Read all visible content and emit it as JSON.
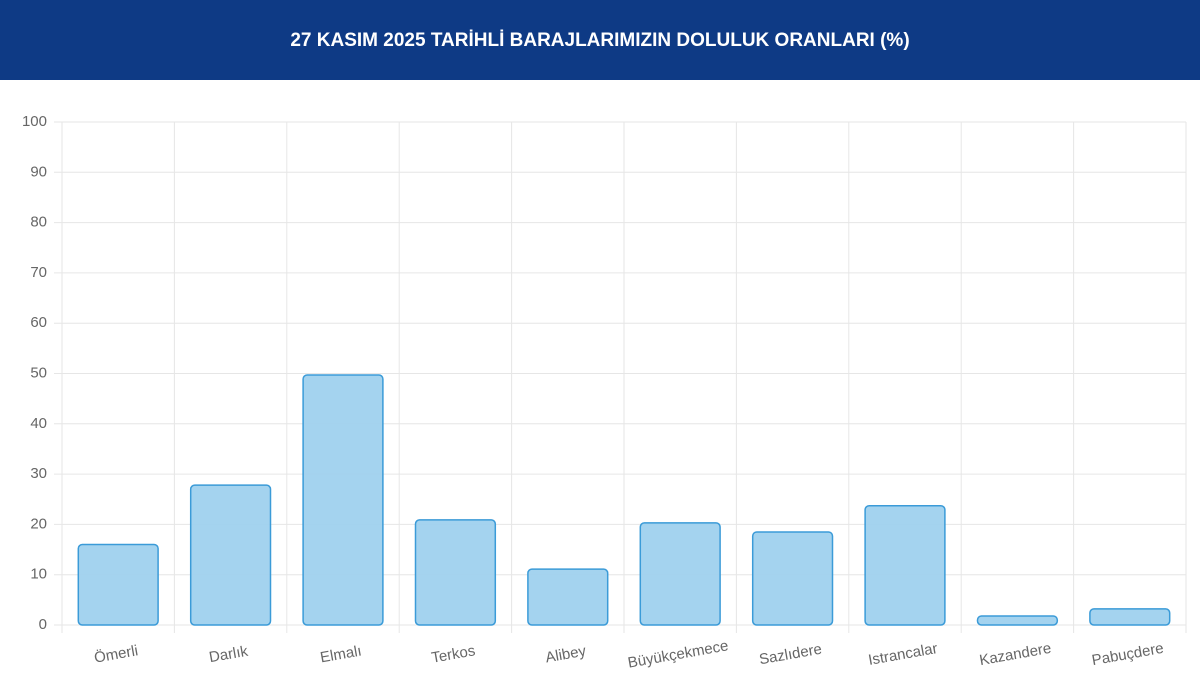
{
  "chart_data": {
    "type": "bar",
    "title": "27 KASIM 2025 TARİHLİ BARAJLARIMIZIN DOLULUK ORANLARI (%)",
    "categories": [
      "Ömerli",
      "Darlık",
      "Elmalı",
      "Terkos",
      "Alibey",
      "Büyükçekmece",
      "Sazlıdere",
      "Istrancalar",
      "Kazandere",
      "Pabuçdere"
    ],
    "values": [
      16,
      27.8,
      49.7,
      20.9,
      11.1,
      20.3,
      18.5,
      23.7,
      1.8,
      3.2
    ],
    "color": "#9fd1ee",
    "border_color": "#3b9bd8",
    "ylim": [
      0,
      100
    ],
    "yticks": [
      0,
      10,
      20,
      30,
      40,
      50,
      60,
      70,
      80,
      90,
      100
    ],
    "grid": true
  }
}
